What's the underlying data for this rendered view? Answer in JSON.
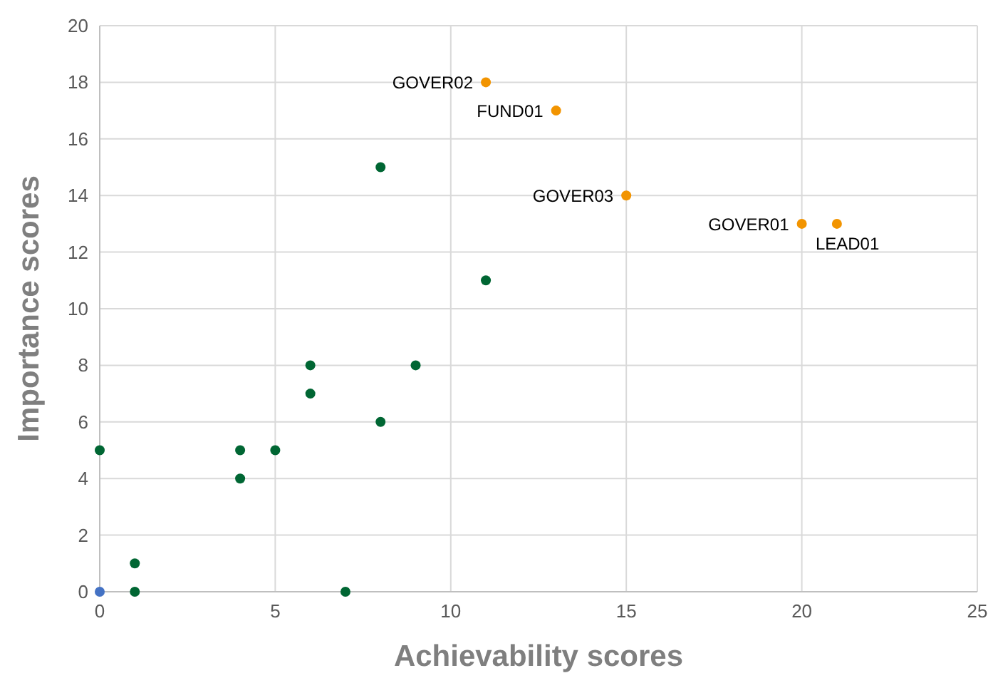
{
  "chart_data": {
    "type": "scatter",
    "xlabel": "Achievability scores",
    "ylabel": "Importance scores",
    "xlim": [
      0,
      25
    ],
    "xticks": [
      0,
      5,
      10,
      15,
      20,
      25
    ],
    "ylim": [
      0,
      20
    ],
    "yticks": [
      0,
      2,
      4,
      6,
      8,
      10,
      12,
      14,
      16,
      18,
      20
    ],
    "grid": true,
    "marker": "circle",
    "series": [
      {
        "color": "#006633",
        "x": [
          0,
          1,
          1,
          4,
          4,
          5,
          6,
          6,
          7,
          8,
          8,
          9,
          11
        ],
        "values": [
          5,
          1,
          0,
          5,
          4,
          5,
          8,
          7,
          0,
          15,
          6,
          8,
          11
        ]
      },
      {
        "color": "#4472c4",
        "x": [
          0
        ],
        "values": [
          0
        ]
      },
      {
        "color": "#f29400",
        "x": [
          11,
          13,
          15,
          20,
          21
        ],
        "values": [
          18,
          17,
          14,
          13,
          13
        ]
      }
    ],
    "annotations": [
      {
        "text": "GOVER02",
        "x": 11,
        "y": 18
      },
      {
        "text": "FUND01",
        "x": 13,
        "y": 17
      },
      {
        "text": "GOVER03",
        "x": 15,
        "y": 14
      },
      {
        "text": "GOVER01",
        "x": 20,
        "y": 13
      },
      {
        "text": "LEAD01",
        "x": 21,
        "y": 13
      }
    ]
  }
}
